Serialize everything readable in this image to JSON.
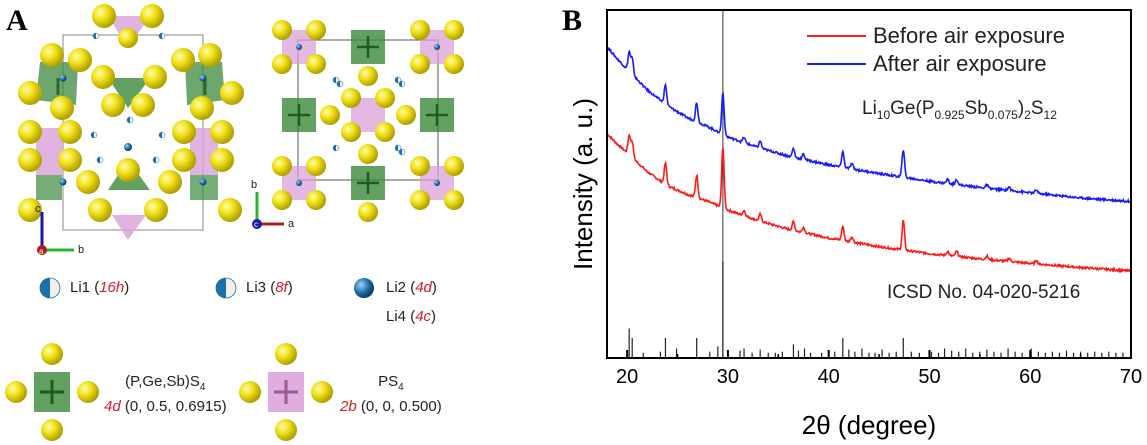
{
  "panel_a": {
    "letter": "A",
    "axes_left": {
      "c": "c",
      "b": "b",
      "a": "a"
    },
    "axes_right": {
      "b": "b",
      "a": "a",
      "c": "c"
    },
    "li_legend": [
      {
        "name": "Li1",
        "site": "16h"
      },
      {
        "name": "Li3",
        "site": "8f"
      },
      {
        "name": "Li2",
        "site": "4d"
      },
      {
        "name": "Li4",
        "site": "4c"
      }
    ],
    "polyhedra": [
      {
        "formula": "(P,Ge,Sb)S",
        "sub": "4",
        "site": "4d",
        "coords": "(0, 0.5, 0.6915)"
      },
      {
        "formula": "PS",
        "sub": "4",
        "site": "2b",
        "coords": "(0, 0, 0.500)"
      }
    ],
    "colors": {
      "sulfur": "#e8d800",
      "green_tetra": "#3c8a3c",
      "pink_tetra": "#d9a0d8",
      "li": "#1d6fa8"
    }
  },
  "panel_b": {
    "letter": "B",
    "icsd_label": "ICSD No. 04-020-5216",
    "formula": {
      "li": "Li",
      "li_sub": "10",
      "mid": "Ge(P",
      "p_sub": "0.925",
      "sb": "Sb",
      "sb_sub": "0.075",
      "tail": ")",
      "tail_sub": "2",
      "s": "S",
      "s_sub": "12"
    }
  },
  "chart_data": {
    "type": "line",
    "xlabel": "2θ (degree)",
    "ylabel": "Intensity (a. u.)",
    "xlim": [
      18,
      70
    ],
    "xticks": [
      20,
      30,
      40,
      50,
      60,
      70
    ],
    "ylim": [
      0,
      10
    ],
    "series": [
      {
        "name": "Before air exposure",
        "color": "#ff1a1a",
        "baseline": [
          [
            18,
            6.45
          ],
          [
            19,
            6.15
          ],
          [
            20,
            5.9
          ],
          [
            22,
            5.35
          ],
          [
            24,
            4.95
          ],
          [
            26,
            4.7
          ],
          [
            28,
            4.5
          ],
          [
            30,
            4.25
          ],
          [
            33,
            3.95
          ],
          [
            36,
            3.7
          ],
          [
            40,
            3.45
          ],
          [
            45,
            3.2
          ],
          [
            50,
            3.0
          ],
          [
            55,
            2.85
          ],
          [
            60,
            2.72
          ],
          [
            65,
            2.6
          ],
          [
            70,
            2.5
          ]
        ],
        "peaks": [
          [
            20.2,
            0.55
          ],
          [
            20.5,
            0.45
          ],
          [
            23.8,
            0.6
          ],
          [
            26.9,
            0.65
          ],
          [
            29.5,
            1.75
          ],
          [
            31.6,
            0.15
          ],
          [
            33.2,
            0.2
          ],
          [
            36.5,
            0.25
          ],
          [
            37.5,
            0.15
          ],
          [
            41.4,
            0.4
          ],
          [
            42.3,
            0.15
          ],
          [
            47.4,
            0.85
          ],
          [
            51.8,
            0.12
          ],
          [
            52.7,
            0.15
          ],
          [
            55.7,
            0.1
          ],
          [
            57.9,
            0.1
          ],
          [
            60.6,
            0.1
          ]
        ]
      },
      {
        "name": "After air exposure",
        "color": "#1a1aff",
        "baseline": [
          [
            18,
            8.95
          ],
          [
            19,
            8.6
          ],
          [
            20,
            8.3
          ],
          [
            22,
            7.7
          ],
          [
            24,
            7.25
          ],
          [
            26,
            6.9
          ],
          [
            28,
            6.65
          ],
          [
            30,
            6.35
          ],
          [
            33,
            6.05
          ],
          [
            36,
            5.8
          ],
          [
            40,
            5.55
          ],
          [
            45,
            5.3
          ],
          [
            50,
            5.08
          ],
          [
            55,
            4.9
          ],
          [
            60,
            4.75
          ],
          [
            65,
            4.6
          ],
          [
            70,
            4.5
          ]
        ],
        "peaks": [
          [
            20.2,
            0.55
          ],
          [
            20.5,
            0.45
          ],
          [
            23.8,
            0.55
          ],
          [
            26.9,
            0.55
          ],
          [
            29.5,
            1.2
          ],
          [
            31.6,
            0.15
          ],
          [
            33.2,
            0.2
          ],
          [
            36.5,
            0.25
          ],
          [
            37.5,
            0.15
          ],
          [
            41.4,
            0.45
          ],
          [
            42.3,
            0.15
          ],
          [
            47.4,
            0.8
          ],
          [
            51.8,
            0.12
          ],
          [
            52.7,
            0.15
          ],
          [
            55.7,
            0.1
          ],
          [
            57.9,
            0.1
          ],
          [
            60.6,
            0.1
          ]
        ]
      }
    ],
    "reference_sticks": [
      [
        20.2,
        2.8
      ],
      [
        20.5,
        1.9
      ],
      [
        21.6,
        0.5
      ],
      [
        23.3,
        0.6
      ],
      [
        23.8,
        1.9
      ],
      [
        24.9,
        0.9
      ],
      [
        26.9,
        1.9
      ],
      [
        28.2,
        0.6
      ],
      [
        29.0,
        1.1
      ],
      [
        29.5,
        9.2
      ],
      [
        31.2,
        0.7
      ],
      [
        31.6,
        0.9
      ],
      [
        32.4,
        0.5
      ],
      [
        33.2,
        0.8
      ],
      [
        34.0,
        0.5
      ],
      [
        34.7,
        0.5
      ],
      [
        35.4,
        0.6
      ],
      [
        36.5,
        1.3
      ],
      [
        37.0,
        0.7
      ],
      [
        37.6,
        0.9
      ],
      [
        38.2,
        0.5
      ],
      [
        39.3,
        0.5
      ],
      [
        40.0,
        0.5
      ],
      [
        40.6,
        0.6
      ],
      [
        41.4,
        1.9
      ],
      [
        42.0,
        0.8
      ],
      [
        42.6,
        0.6
      ],
      [
        43.3,
        0.9
      ],
      [
        44.0,
        0.5
      ],
      [
        44.6,
        0.5
      ],
      [
        45.3,
        0.8
      ],
      [
        46.0,
        0.5
      ],
      [
        46.7,
        0.6
      ],
      [
        47.4,
        1.9
      ],
      [
        48.2,
        0.6
      ],
      [
        49.0,
        0.5
      ],
      [
        50.2,
        0.6
      ],
      [
        50.9,
        0.5
      ],
      [
        51.5,
        0.9
      ],
      [
        52.2,
        0.7
      ],
      [
        52.9,
        0.6
      ],
      [
        53.6,
        0.9
      ],
      [
        54.3,
        0.5
      ],
      [
        55.0,
        0.6
      ],
      [
        55.7,
        0.8
      ],
      [
        56.4,
        0.6
      ],
      [
        57.1,
        0.5
      ],
      [
        57.8,
        0.9
      ],
      [
        58.5,
        0.6
      ],
      [
        59.2,
        0.5
      ],
      [
        60.1,
        0.9
      ],
      [
        60.8,
        0.6
      ],
      [
        61.5,
        0.5
      ],
      [
        62.2,
        0.6
      ],
      [
        62.9,
        0.5
      ],
      [
        63.6,
        0.7
      ],
      [
        64.3,
        0.5
      ],
      [
        65.0,
        0.6
      ],
      [
        65.7,
        0.5
      ],
      [
        66.4,
        0.6
      ],
      [
        67.1,
        0.5
      ],
      [
        67.8,
        0.6
      ],
      [
        68.5,
        0.5
      ],
      [
        69.2,
        0.5
      ]
    ],
    "vertical_marker": 29.5,
    "legend_placement": "top-right"
  }
}
